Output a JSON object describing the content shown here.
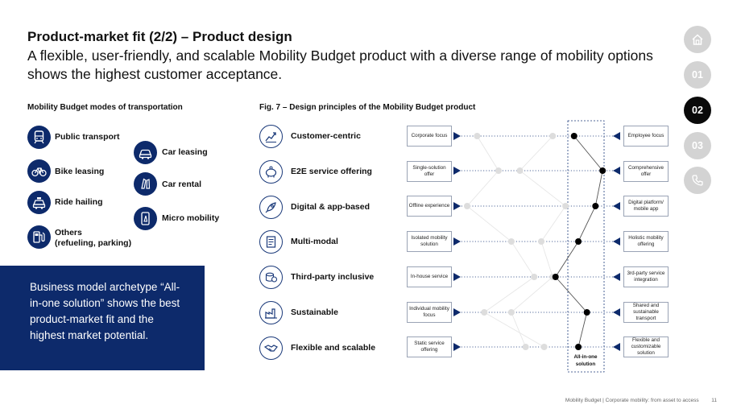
{
  "header": {
    "title": "Product-market fit (2/2) – Product design",
    "subtitle": "A flexible, user-friendly, and scalable Mobility Budget product with a diverse range of mobility options shows the highest customer acceptance."
  },
  "modes": {
    "heading": "Mobility Budget modes of transportation",
    "items": [
      {
        "label": "Public transport",
        "icon": "train-icon"
      },
      {
        "label": "Car leasing",
        "icon": "car-icon"
      },
      {
        "label": "Bike leasing",
        "icon": "bike-icon"
      },
      {
        "label": "Car rental",
        "icon": "key-icon"
      },
      {
        "label": "Ride hailing",
        "icon": "taxi-icon"
      },
      {
        "label": "Micro mobility",
        "icon": "scooter-icon"
      },
      {
        "label": "Others\n(refueling, parking)",
        "icon": "fuel-icon"
      }
    ]
  },
  "callout": {
    "text": "Business model archetype “All-in-one solution” shows the best product-market fit and the highest market potential."
  },
  "figure": {
    "heading": "Fig. 7 – Design principles of the Mobility Budget product",
    "principles": [
      {
        "label": "Customer-centric",
        "icon": "chart-growth-icon",
        "left": "Corporate focus",
        "right": "Employee focus",
        "position": 0.75
      },
      {
        "label": "E2E service offering",
        "icon": "piggy-bank-icon",
        "left": "Single-solution offer",
        "right": "Comprehensive offer",
        "position": 0.95
      },
      {
        "label": "Digital & app-based",
        "icon": "rocket-icon",
        "left": "Offline experience",
        "right": "Digital platform/ mobile app",
        "position": 0.9
      },
      {
        "label": "Multi-modal",
        "icon": "document-icon",
        "left": "Isolated mobility solution",
        "right": "Holistic mobility offering",
        "position": 0.78
      },
      {
        "label": "Third-party inclusive",
        "icon": "coins-icon",
        "left": "In-house service",
        "right": "3rd-party service integration",
        "position": 0.62
      },
      {
        "label": "Sustainable",
        "icon": "factory-icon",
        "left": "Individual mobility focus",
        "right": "Shared and sustainable transport",
        "position": 0.84
      },
      {
        "label": "Flexible and scalable",
        "icon": "handshake-icon",
        "left": "Static service offering",
        "right": "Flexible and customizable solution",
        "position": 0.78
      }
    ],
    "grey_profiles": [
      [
        0.07,
        0.22,
        0.0,
        0.31,
        0.47,
        0.12,
        0.54
      ],
      [
        0.6,
        0.37,
        0.69,
        0.52,
        0.6,
        0.31,
        0.41
      ]
    ],
    "highlight_label": "All-in-one solution"
  },
  "nav": {
    "items": [
      {
        "label": "",
        "icon": "home-icon",
        "active": false
      },
      {
        "label": "01",
        "active": false
      },
      {
        "label": "02",
        "active": true
      },
      {
        "label": "03",
        "active": false
      },
      {
        "label": "",
        "icon": "phone-icon",
        "active": false
      }
    ]
  },
  "footer": {
    "text": "Mobility Budget | Corporate mobility: from asset to access",
    "page": "11"
  },
  "colors": {
    "navy": "#0d2a6b",
    "nav_grey": "#d3d3d3",
    "nav_active": "#0a0a0a",
    "dot_grey": "#dddddd"
  }
}
